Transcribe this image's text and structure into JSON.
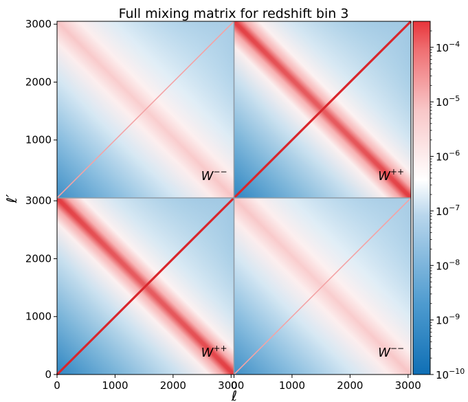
{
  "chart_data": {
    "type": "heatmap",
    "title": "Full mixing matrix for redshift bin 3",
    "xlabel": "ℓ",
    "ylabel": "ℓ′",
    "x_ticks": [
      "0",
      "1000",
      "2000",
      "3000"
    ],
    "y_ticks_upper": [
      "3000",
      "2000",
      "1000"
    ],
    "y_ticks_lower": [
      "3000",
      "2000",
      "1000",
      "0"
    ],
    "xlim": [
      0,
      6100
    ],
    "ylim": [
      0,
      6100
    ],
    "colorbar": {
      "scale": "log",
      "range": [
        1e-10,
        0.0003
      ],
      "ticks": [
        {
          "base": "10",
          "exp": "−4",
          "value": 0.0001
        },
        {
          "base": "10",
          "exp": "−5",
          "value": 1e-05
        },
        {
          "base": "10",
          "exp": "−6",
          "value": 1e-06
        },
        {
          "base": "10",
          "exp": "−7",
          "value": 1e-07
        },
        {
          "base": "10",
          "exp": "−8",
          "value": 1e-08
        },
        {
          "base": "10",
          "exp": "−9",
          "value": 1e-09
        },
        {
          "base": "10",
          "exp": "−10",
          "value": 1e-10
        }
      ],
      "colormap": [
        "#0f6fb5",
        "#ffffff",
        "#e8343a"
      ]
    },
    "blocks": [
      {
        "position": "top-left",
        "label_base": "W",
        "label_sup": "−−",
        "diagonal_peak": 2e-06
      },
      {
        "position": "top-right",
        "label_base": "W",
        "label_sup": "++",
        "diagonal_peak": 0.0003
      },
      {
        "position": "bottom-left",
        "label_base": "W",
        "label_sup": "++",
        "diagonal_peak": 0.0003
      },
      {
        "position": "bottom-right",
        "label_base": "W",
        "label_sup": "−−",
        "diagonal_peak": 2e-06
      }
    ]
  }
}
